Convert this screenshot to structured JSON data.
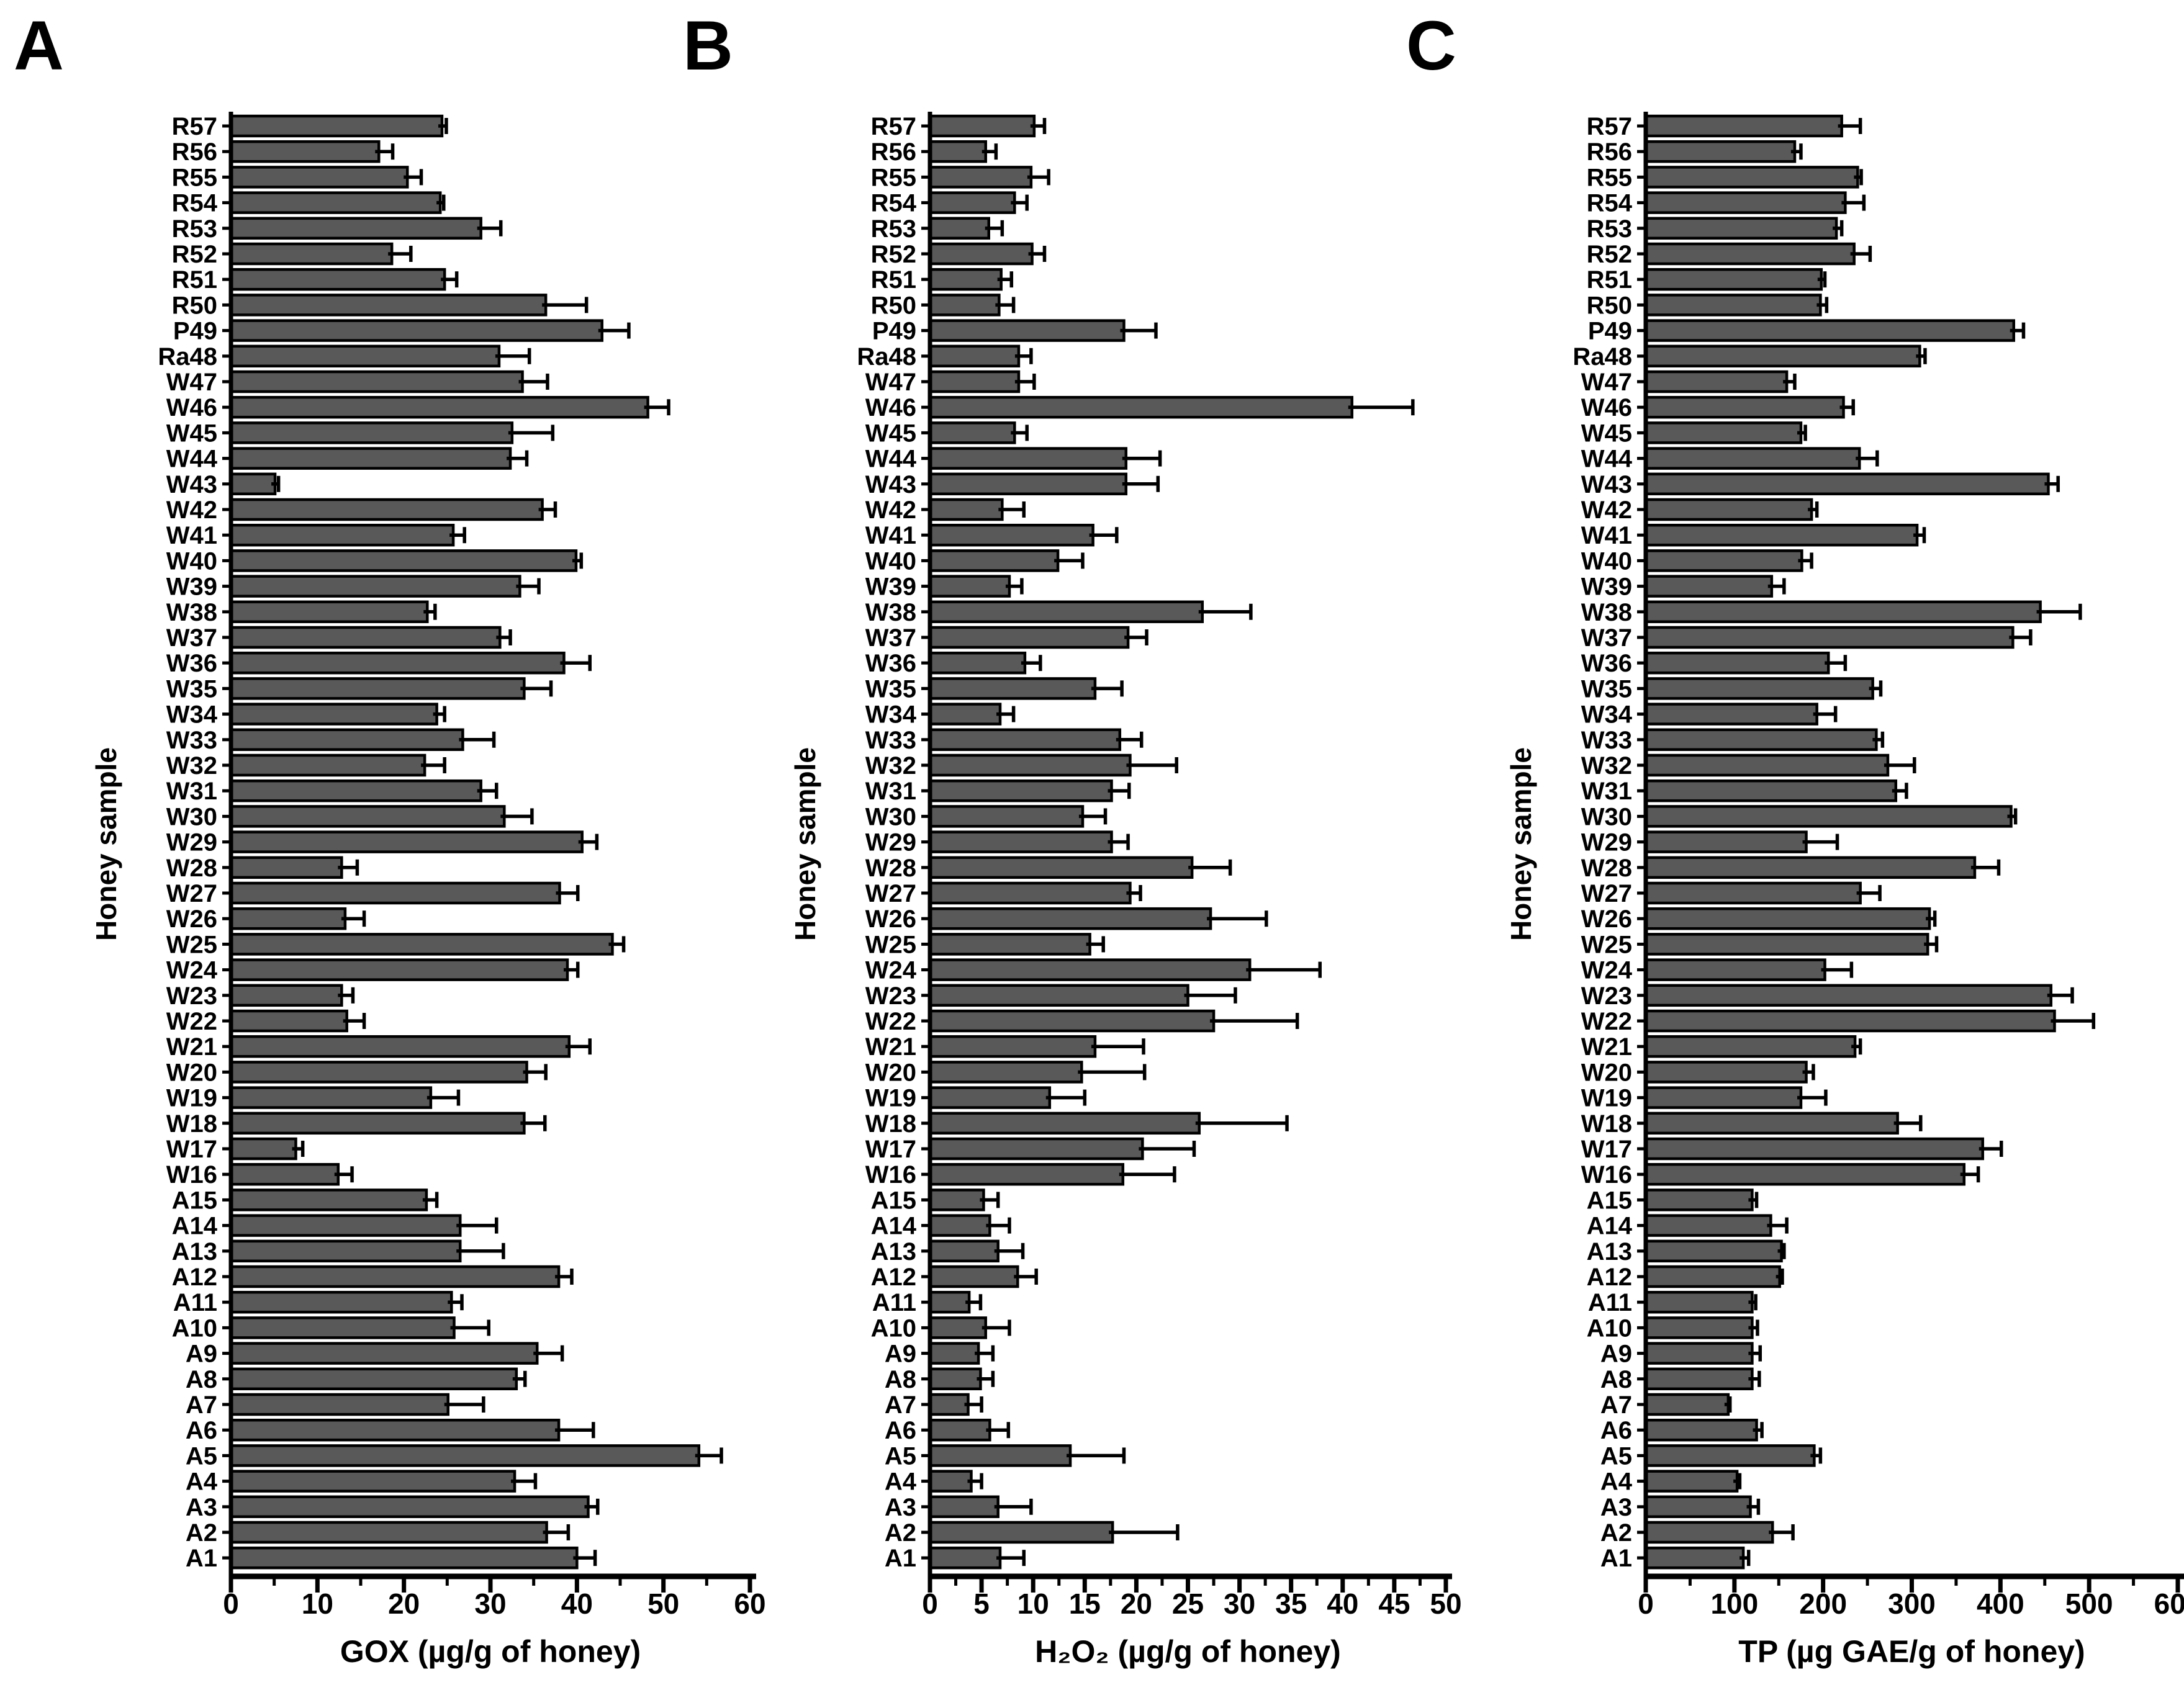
{
  "figure": {
    "background": "#ffffff",
    "bar_fill": "#595959",
    "bar_stroke": "#000000",
    "axis_color": "#000000"
  },
  "chart_data": [
    {
      "type": "bar",
      "orientation": "horizontal",
      "panel": "A",
      "xlabel": "GOX (µg/g of honey)",
      "ylabel": "Honey sample",
      "xlim": [
        0,
        60
      ],
      "xticks": [
        0,
        10,
        20,
        30,
        40,
        50,
        60
      ],
      "minor_tick_step": 5,
      "grid": false,
      "legend": null,
      "error_bars": true,
      "categories": [
        "R57",
        "R56",
        "R55",
        "R54",
        "R53",
        "R52",
        "R51",
        "R50",
        "P49",
        "Ra48",
        "W47",
        "W46",
        "W45",
        "W44",
        "W43",
        "W42",
        "W41",
        "W40",
        "W39",
        "W38",
        "W37",
        "W36",
        "W35",
        "W34",
        "W33",
        "W32",
        "W31",
        "W30",
        "W29",
        "W28",
        "W27",
        "W26",
        "W25",
        "W24",
        "W23",
        "W22",
        "W21",
        "W20",
        "W19",
        "W18",
        "W17",
        "W16",
        "A15",
        "A14",
        "A13",
        "A12",
        "A11",
        "A10",
        "A9",
        "A8",
        "A7",
        "A6",
        "A5",
        "A4",
        "A3",
        "A2",
        "A1"
      ],
      "values": [
        24.4,
        17.1,
        20.4,
        24.2,
        28.9,
        18.6,
        24.7,
        36.4,
        42.9,
        31.0,
        33.7,
        48.2,
        32.5,
        32.3,
        5.1,
        36.0,
        25.7,
        39.9,
        33.4,
        22.7,
        31.1,
        38.5,
        33.9,
        23.8,
        26.8,
        22.4,
        28.9,
        31.6,
        40.6,
        12.8,
        38.0,
        13.2,
        44.1,
        38.9,
        12.8,
        13.4,
        39.1,
        34.2,
        23.1,
        33.9,
        7.5,
        12.4,
        22.6,
        26.5,
        26.5,
        37.9,
        25.5,
        25.8,
        35.4,
        33.0,
        25.1,
        37.9,
        54.1,
        32.8,
        41.3,
        36.5,
        40.0
      ],
      "errors": [
        0.5,
        1.6,
        1.6,
        0.4,
        2.3,
        2.2,
        1.4,
        4.7,
        3.1,
        3.5,
        2.9,
        2.4,
        4.7,
        1.9,
        0.4,
        1.5,
        1.3,
        0.6,
        2.2,
        0.9,
        1.2,
        3.0,
        3.1,
        0.9,
        3.6,
        2.3,
        1.8,
        3.2,
        1.7,
        1.8,
        2.1,
        2.2,
        1.3,
        1.2,
        1.3,
        2.0,
        2.4,
        2.2,
        3.2,
        2.4,
        0.8,
        1.6,
        1.2,
        4.2,
        5.0,
        1.5,
        1.2,
        4.0,
        2.9,
        1.0,
        4.1,
        4.0,
        2.6,
        2.4,
        1.1,
        2.5,
        2.1
      ]
    },
    {
      "type": "bar",
      "orientation": "horizontal",
      "panel": "B",
      "xlabel": "H₂O₂ (µg/g of honey)",
      "ylabel": "Honey sample",
      "xlim": [
        0,
        50
      ],
      "xticks": [
        0,
        5,
        10,
        15,
        20,
        25,
        30,
        35,
        40,
        45,
        50
      ],
      "minor_tick_step": 2.5,
      "grid": false,
      "legend": null,
      "error_bars": true,
      "categories": [
        "R57",
        "R56",
        "R55",
        "R54",
        "R53",
        "R52",
        "R51",
        "R50",
        "P49",
        "Ra48",
        "W47",
        "W46",
        "W45",
        "W44",
        "W43",
        "W42",
        "W41",
        "W40",
        "W39",
        "W38",
        "W37",
        "W36",
        "W35",
        "W34",
        "W33",
        "W32",
        "W31",
        "W30",
        "W29",
        "W28",
        "W27",
        "W26",
        "W25",
        "W24",
        "W23",
        "W22",
        "W21",
        "W20",
        "W19",
        "W18",
        "W17",
        "W16",
        "A15",
        "A14",
        "A13",
        "A12",
        "A11",
        "A10",
        "A9",
        "A8",
        "A7",
        "A6",
        "A5",
        "A4",
        "A3",
        "A2",
        "A1"
      ],
      "values": [
        10.1,
        5.4,
        9.8,
        8.2,
        5.7,
        9.9,
        6.9,
        6.7,
        18.8,
        8.6,
        8.6,
        40.9,
        8.2,
        19.0,
        19.0,
        7.0,
        15.8,
        12.4,
        7.7,
        26.4,
        19.2,
        9.2,
        16.0,
        6.8,
        18.4,
        19.4,
        17.6,
        14.8,
        17.6,
        25.4,
        19.4,
        27.2,
        15.5,
        31.0,
        25.0,
        27.5,
        16.0,
        14.7,
        11.6,
        26.1,
        20.6,
        18.7,
        5.2,
        5.8,
        6.6,
        8.5,
        3.8,
        5.4,
        4.7,
        4.9,
        3.7,
        5.8,
        13.6,
        4.0,
        6.6,
        17.7,
        6.8
      ],
      "errors": [
        1.0,
        1.0,
        1.7,
        1.2,
        1.3,
        1.2,
        1.0,
        1.4,
        3.1,
        1.2,
        1.5,
        5.9,
        1.2,
        3.3,
        3.1,
        2.1,
        2.3,
        2.4,
        1.2,
        4.7,
        1.8,
        1.5,
        2.6,
        1.3,
        2.1,
        4.5,
        1.7,
        2.2,
        1.6,
        3.7,
        1.0,
        5.4,
        1.3,
        6.8,
        4.6,
        8.1,
        4.7,
        6.1,
        3.4,
        8.5,
        5.0,
        5.0,
        1.4,
        1.9,
        2.4,
        1.8,
        1.1,
        2.3,
        1.4,
        1.2,
        1.3,
        1.8,
        5.2,
        1.0,
        3.2,
        6.3,
        2.3
      ]
    },
    {
      "type": "bar",
      "orientation": "horizontal",
      "panel": "C",
      "xlabel": "TP (µg GAE/g of honey)",
      "ylabel": "Honey sample",
      "xlim": [
        0,
        600
      ],
      "xticks": [
        0,
        100,
        200,
        300,
        400,
        500,
        600
      ],
      "minor_tick_step": 50,
      "grid": false,
      "legend": null,
      "error_bars": true,
      "categories": [
        "R57",
        "R56",
        "R55",
        "R54",
        "R53",
        "R52",
        "R51",
        "R50",
        "P49",
        "Ra48",
        "W47",
        "W46",
        "W45",
        "W44",
        "W43",
        "W42",
        "W41",
        "W40",
        "W39",
        "W38",
        "W37",
        "W36",
        "W35",
        "W34",
        "W33",
        "W32",
        "W31",
        "W30",
        "W29",
        "W28",
        "W27",
        "W26",
        "W25",
        "W24",
        "W23",
        "W22",
        "W21",
        "W20",
        "W19",
        "W18",
        "W17",
        "W16",
        "A15",
        "A14",
        "A13",
        "A12",
        "A11",
        "A10",
        "A9",
        "A8",
        "A7",
        "A6",
        "A5",
        "A4",
        "A3",
        "A2",
        "A1"
      ],
      "values": [
        221,
        168,
        239,
        225,
        215,
        235,
        198,
        197,
        415,
        309,
        159,
        223,
        175,
        241,
        454,
        187,
        306,
        176,
        142,
        445,
        414,
        206,
        256,
        193,
        260,
        273,
        282,
        412,
        181,
        371,
        242,
        320,
        318,
        202,
        457,
        461,
        236,
        181,
        175,
        284,
        380,
        359,
        120,
        141,
        153,
        151,
        120,
        120,
        120,
        120,
        93,
        125,
        190,
        103,
        118,
        143,
        110
      ],
      "errors": [
        21,
        7,
        4,
        21,
        6,
        18,
        4,
        7,
        11,
        6,
        9,
        11,
        5,
        20,
        11,
        6,
        8,
        11,
        14,
        45,
        20,
        19,
        9,
        21,
        7,
        30,
        12,
        5,
        35,
        27,
        22,
        6,
        10,
        30,
        24,
        44,
        6,
        8,
        28,
        26,
        21,
        16,
        5,
        18,
        3,
        3,
        4,
        6,
        9,
        8,
        2,
        6,
        7,
        3,
        9,
        23,
        6
      ]
    }
  ]
}
